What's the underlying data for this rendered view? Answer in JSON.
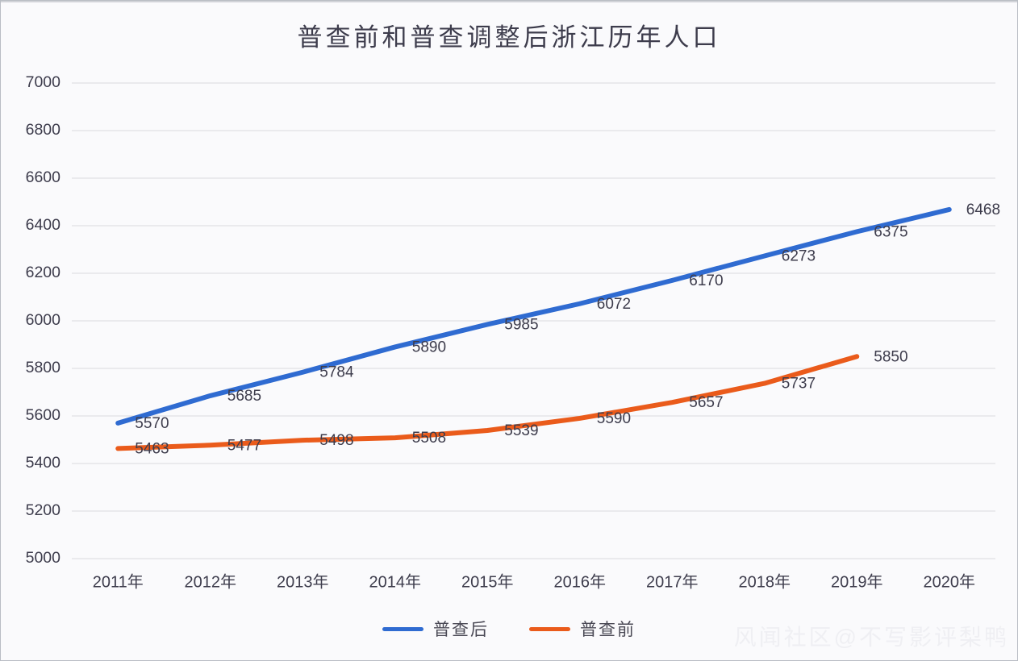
{
  "watermark": "风闻社区@不写影评梨鸭",
  "colors": {
    "background": "#fafafc",
    "grid": "#d9d9de",
    "axis_text": "#3d3c4c",
    "data_label_text": "#3d3c4c",
    "legend_text": "#4a4955",
    "series_blue": "#2f6bd1",
    "series_orange": "#ea5b1b"
  },
  "chart_data": {
    "type": "line",
    "title": "普查前和普查调整后浙江历年人口",
    "categories": [
      "2011年",
      "2012年",
      "2013年",
      "2014年",
      "2015年",
      "2016年",
      "2017年",
      "2018年",
      "2019年",
      "2020年"
    ],
    "series": [
      {
        "name": "普查后",
        "color": "#2f6bd1",
        "values": [
          5570,
          5685,
          5784,
          5890,
          5985,
          6072,
          6170,
          6273,
          6375,
          6468
        ]
      },
      {
        "name": "普查前",
        "color": "#ea5b1b",
        "values": [
          5463,
          5477,
          5498,
          5508,
          5539,
          5590,
          5657,
          5737,
          5850
        ]
      }
    ],
    "xlabel": "",
    "ylabel": "",
    "ylim": [
      5000,
      7000
    ],
    "y_ticks": [
      5000,
      5200,
      5400,
      5600,
      5800,
      6000,
      6200,
      6400,
      6600,
      6800,
      7000
    ],
    "grid": "horizontal",
    "legend_position": "bottom",
    "data_labels": true
  }
}
